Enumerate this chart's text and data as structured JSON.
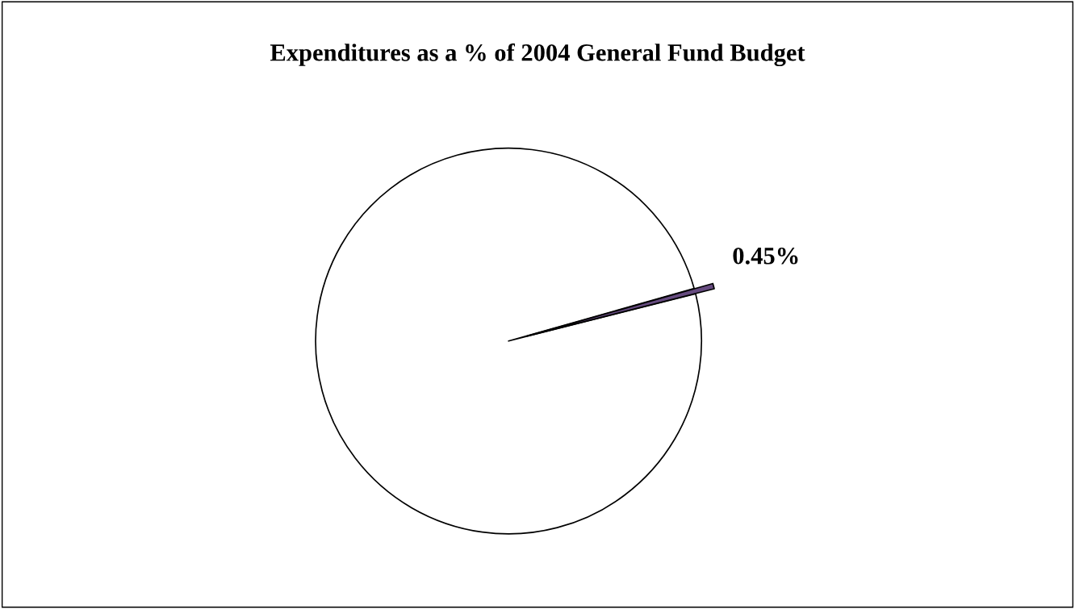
{
  "chart_data": {
    "type": "pie",
    "title": "Expenditures as a % of 2004 General Fund Budget",
    "categories": [
      null,
      null
    ],
    "values": [
      99.55,
      0.45
    ],
    "colors": [
      "#ffffff",
      "#664b80"
    ],
    "value_labels": [
      null,
      "0.45%"
    ]
  }
}
